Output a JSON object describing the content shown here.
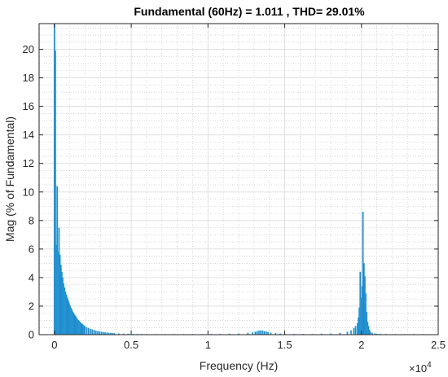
{
  "chart_data": {
    "type": "bar",
    "title": "Fundamental (60Hz) = 1.011 , THD= 29.01%",
    "xlabel": "Frequency (Hz)",
    "ylabel": "Mag (% of Fundamental)",
    "x_exponent_label": "×10",
    "x_exponent_power": "4",
    "xlim": [
      -1000,
      25000
    ],
    "ylim": [
      0,
      21.8
    ],
    "x_ticks": [
      0,
      5000,
      10000,
      15000,
      20000,
      25000
    ],
    "x_tick_labels": [
      "0",
      "0.5",
      "1",
      "1.5",
      "2",
      "2.5"
    ],
    "y_ticks": [
      0,
      2,
      4,
      6,
      8,
      10,
      12,
      14,
      16,
      18,
      20
    ],
    "y_tick_labels": [
      "0",
      "2",
      "4",
      "6",
      "8",
      "10",
      "12",
      "14",
      "16",
      "18",
      "20"
    ],
    "grid": true,
    "minor_grid": true,
    "bar_color": "#0072BD",
    "series": [
      {
        "x": [
          0,
          60,
          120,
          180,
          240,
          300,
          360,
          420,
          480,
          540,
          600,
          660,
          720,
          780,
          840,
          900,
          960,
          1020,
          1080,
          1140,
          1200,
          1260,
          1320,
          1380,
          1440,
          1500,
          1560,
          1620,
          1680,
          1740,
          1800,
          1860,
          1920,
          1980,
          2100,
          2220,
          2340,
          2460,
          2580,
          2700,
          2820,
          2940,
          3060,
          3180,
          3300,
          3420,
          3540,
          3660,
          3780,
          3900,
          4200,
          4500,
          4800,
          5100,
          5400,
          5700,
          6000,
          6600,
          7200,
          7800,
          8400,
          9000,
          9600,
          10200,
          10800,
          11400,
          12000,
          12600,
          12900,
          13080,
          13200,
          13320,
          13440,
          13560,
          13680,
          13800,
          13920,
          14100,
          14400,
          14700,
          15000,
          15600,
          16200,
          16800,
          17400,
          18000,
          18600,
          19080,
          19320,
          19500,
          19620,
          19740,
          19800,
          19860,
          19920,
          19980,
          20040,
          20100,
          20160,
          20220,
          20280,
          20340,
          20400,
          20460,
          20520,
          20580,
          20700,
          20880,
          21000,
          21240,
          21600,
          22200,
          22800,
          23400,
          24000
        ],
        "values": [
          21.8,
          19.9,
          6.3,
          10.4,
          5.8,
          7.5,
          5.6,
          4.9,
          4.4,
          4.0,
          3.6,
          3.3,
          3.0,
          2.8,
          2.6,
          2.4,
          2.2,
          2.05,
          1.9,
          1.75,
          1.6,
          1.5,
          1.4,
          1.3,
          1.2,
          1.1,
          1.02,
          0.95,
          0.88,
          0.82,
          0.76,
          0.7,
          0.65,
          0.6,
          0.52,
          0.46,
          0.4,
          0.36,
          0.32,
          0.28,
          0.25,
          0.22,
          0.2,
          0.18,
          0.16,
          0.14,
          0.13,
          0.12,
          0.11,
          0.1,
          0.08,
          0.07,
          0.06,
          0.05,
          0.05,
          0.04,
          0.04,
          0.03,
          0.03,
          0.03,
          0.03,
          0.04,
          0.04,
          0.04,
          0.05,
          0.06,
          0.08,
          0.12,
          0.16,
          0.2,
          0.24,
          0.28,
          0.3,
          0.28,
          0.25,
          0.22,
          0.18,
          0.14,
          0.1,
          0.08,
          0.06,
          0.05,
          0.05,
          0.05,
          0.06,
          0.08,
          0.12,
          0.2,
          0.3,
          0.45,
          0.6,
          0.8,
          1.2,
          1.9,
          4.4,
          2.6,
          3.4,
          8.6,
          5.0,
          4.1,
          2.9,
          1.6,
          0.9,
          0.6,
          0.35,
          0.2,
          0.12,
          0.08,
          0.06,
          0.05,
          0.04,
          0.03,
          0.03,
          0.02,
          0.02
        ]
      }
    ]
  }
}
